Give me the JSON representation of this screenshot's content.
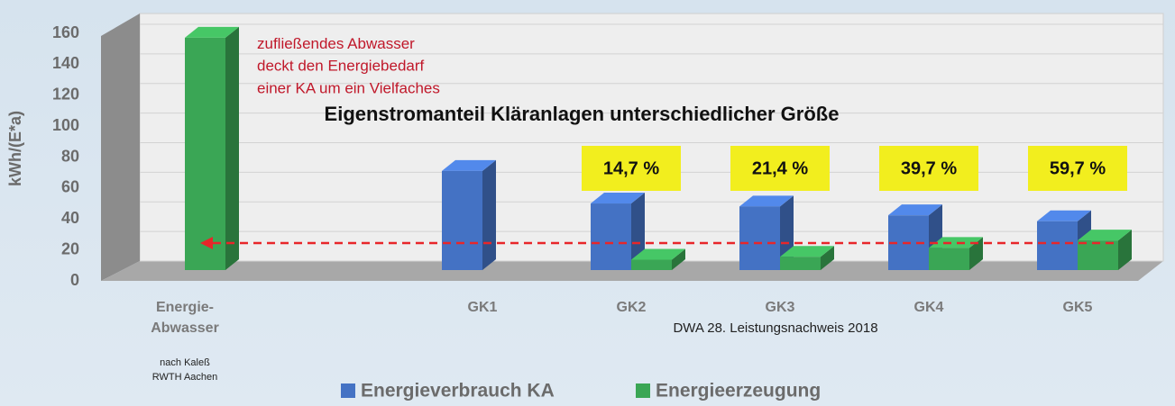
{
  "chart_data": {
    "type": "bar3d",
    "title": "Eigenstromanteil Kläranlagen unterschiedlicher Größe",
    "y_label": "kWh/(E*a)",
    "categories": [
      "Energie-\nAbwasser",
      "GK1",
      "GK2",
      "GK3",
      "GK4",
      "GK5"
    ],
    "category_note": "nach Kaleß\nRWTH Aachen",
    "series": [
      {
        "name": "Energieverbrauch KA",
        "color": "#4472c4",
        "values": [
          null,
          67,
          45,
          43,
          37,
          33
        ]
      },
      {
        "name": "Energieerzeugung",
        "color": "#3aa655",
        "values": [
          157,
          null,
          7,
          9,
          15,
          20
        ]
      }
    ],
    "percent_labels": [
      null,
      null,
      "14,7 %",
      "21,4 %",
      "39,7 %",
      "59,7 %"
    ],
    "annotation": "zufließendes Abwasser\ndeckt den Energiebedarf\neiner KA um ein Vielfaches",
    "source": "DWA 28. Leistungsnachweis 2018",
    "ylim": [
      0,
      160
    ],
    "yticks": [
      0,
      20,
      40,
      60,
      80,
      100,
      120,
      140,
      160
    ],
    "grid": true,
    "legend": "bottom"
  }
}
